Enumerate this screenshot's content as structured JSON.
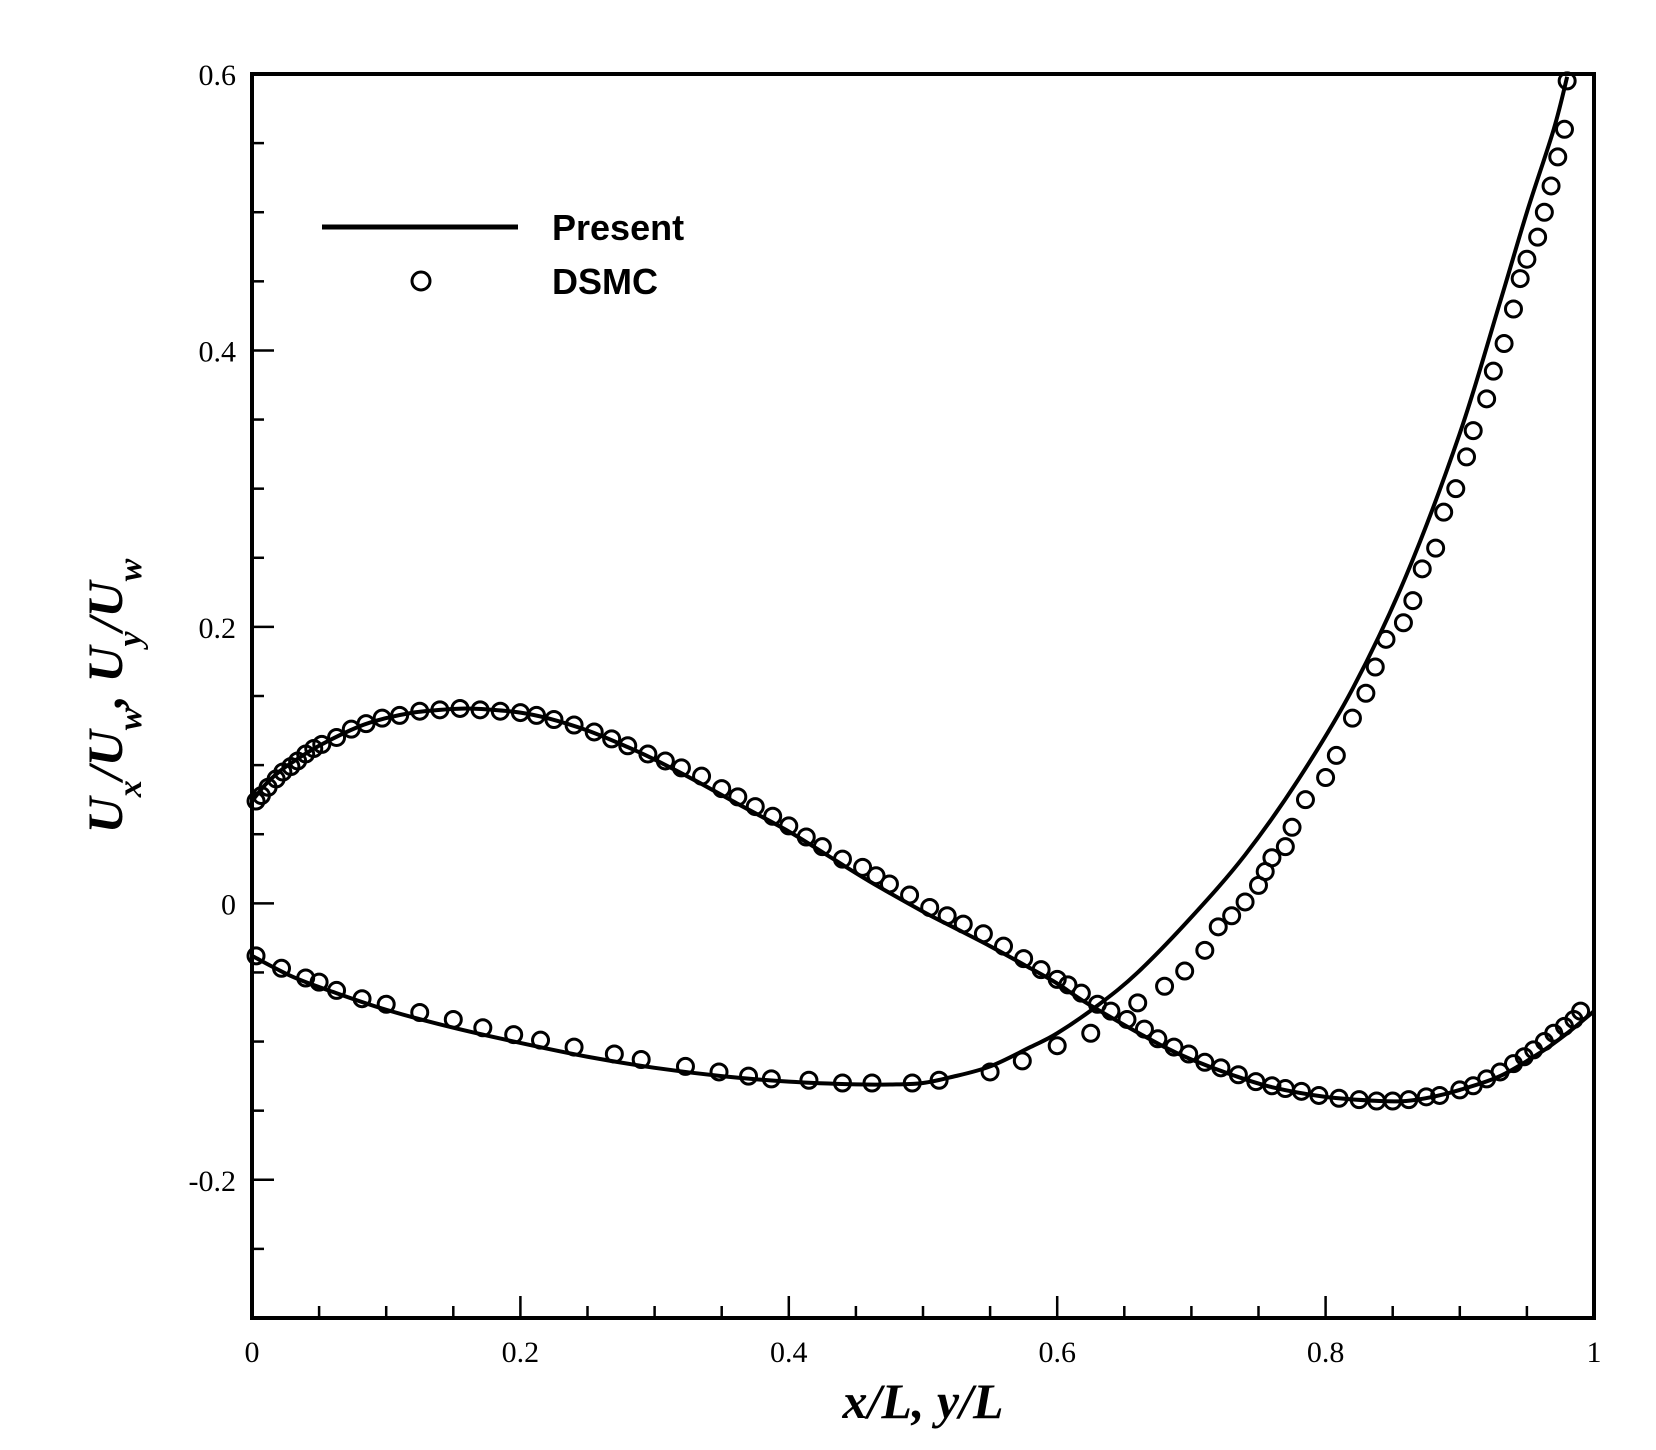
{
  "chart_data": {
    "type": "line",
    "xlabel": "x/L, y/L",
    "ylabel": "U_x/U_w, U_y/U_w",
    "ylabel_parts": [
      {
        "t": "U",
        "sub": ""
      },
      {
        "t": "x",
        "sub": "sub"
      },
      {
        "t": "/U",
        "sub": ""
      },
      {
        "t": "w",
        "sub": "sub"
      },
      {
        "t": ", U",
        "sub": ""
      },
      {
        "t": "y",
        "sub": "sub"
      },
      {
        "t": "/U",
        "sub": ""
      },
      {
        "t": "w",
        "sub": "sub"
      }
    ],
    "xlim": [
      0,
      1
    ],
    "ylim": [
      -0.3,
      0.6
    ],
    "xticks": [
      0,
      0.2,
      0.4,
      0.6,
      0.8,
      1
    ],
    "xtick_labels": [
      "0",
      "0.2",
      "0.4",
      "0.6",
      "0.8",
      "1"
    ],
    "yticks": [
      -0.2,
      0,
      0.2,
      0.4,
      0.6
    ],
    "ytick_labels": [
      "-0.2",
      "0",
      "0.2",
      "0.4",
      "0.6"
    ],
    "x_minor_step": 0.05,
    "y_minor_step": 0.05,
    "grid": false,
    "legend": {
      "position": "top-left",
      "entries": [
        {
          "label": "Present",
          "style": "solid-line"
        },
        {
          "label": "DSMC",
          "style": "open-circle"
        }
      ]
    },
    "series": [
      {
        "style": "solid-line",
        "x": [
          0.0,
          0.01,
          0.02,
          0.03,
          0.05,
          0.08,
          0.1,
          0.12,
          0.14,
          0.16,
          0.18,
          0.2,
          0.22,
          0.25,
          0.28,
          0.3,
          0.33,
          0.36,
          0.4,
          0.43,
          0.46,
          0.5,
          0.52,
          0.55,
          0.58,
          0.6,
          0.62,
          0.65,
          0.68,
          0.7,
          0.73,
          0.76,
          0.8,
          0.84,
          0.86,
          0.88,
          0.9,
          0.93,
          0.96,
          0.98,
          1.0
        ],
        "y": [
          0.074,
          0.086,
          0.095,
          0.102,
          0.114,
          0.128,
          0.134,
          0.138,
          0.14,
          0.141,
          0.14,
          0.138,
          0.134,
          0.125,
          0.113,
          0.104,
          0.089,
          0.073,
          0.052,
          0.034,
          0.016,
          -0.006,
          -0.016,
          -0.031,
          -0.047,
          -0.058,
          -0.071,
          -0.088,
          -0.104,
          -0.113,
          -0.124,
          -0.133,
          -0.14,
          -0.143,
          -0.143,
          -0.14,
          -0.135,
          -0.125,
          -0.108,
          -0.094,
          -0.078
        ]
      },
      {
        "style": "open-circle",
        "x": [
          0.003,
          0.007,
          0.012,
          0.018,
          0.023,
          0.029,
          0.034,
          0.04,
          0.046,
          0.052,
          0.063,
          0.074,
          0.085,
          0.097,
          0.11,
          0.125,
          0.14,
          0.155,
          0.17,
          0.185,
          0.2,
          0.212,
          0.225,
          0.24,
          0.255,
          0.268,
          0.28,
          0.295,
          0.308,
          0.32,
          0.335,
          0.35,
          0.362,
          0.375,
          0.388,
          0.4,
          0.413,
          0.425,
          0.44,
          0.455,
          0.465,
          0.475,
          0.49,
          0.505,
          0.518,
          0.53,
          0.545,
          0.56,
          0.575,
          0.588,
          0.6,
          0.608,
          0.618,
          0.63,
          0.64,
          0.652,
          0.665,
          0.675,
          0.687,
          0.698,
          0.71,
          0.722,
          0.735,
          0.748,
          0.76,
          0.77,
          0.782,
          0.795,
          0.81,
          0.825,
          0.838,
          0.85,
          0.862,
          0.875,
          0.885,
          0.9,
          0.91,
          0.92,
          0.93,
          0.94,
          0.948,
          0.955,
          0.963,
          0.97,
          0.978,
          0.985,
          0.99
        ],
        "y": [
          0.074,
          0.078,
          0.084,
          0.09,
          0.095,
          0.099,
          0.103,
          0.108,
          0.112,
          0.115,
          0.12,
          0.126,
          0.13,
          0.134,
          0.136,
          0.139,
          0.14,
          0.141,
          0.14,
          0.139,
          0.138,
          0.136,
          0.133,
          0.129,
          0.124,
          0.119,
          0.114,
          0.108,
          0.103,
          0.098,
          0.092,
          0.083,
          0.077,
          0.07,
          0.063,
          0.056,
          0.048,
          0.041,
          0.032,
          0.026,
          0.02,
          0.014,
          0.006,
          -0.003,
          -0.009,
          -0.015,
          -0.022,
          -0.031,
          -0.04,
          -0.048,
          -0.055,
          -0.059,
          -0.065,
          -0.073,
          -0.078,
          -0.084,
          -0.091,
          -0.098,
          -0.104,
          -0.109,
          -0.115,
          -0.119,
          -0.124,
          -0.129,
          -0.132,
          -0.134,
          -0.136,
          -0.139,
          -0.141,
          -0.142,
          -0.143,
          -0.143,
          -0.142,
          -0.14,
          -0.139,
          -0.135,
          -0.132,
          -0.127,
          -0.122,
          -0.116,
          -0.111,
          -0.106,
          -0.1,
          -0.094,
          -0.089,
          -0.084,
          -0.078
        ]
      },
      {
        "style": "solid-line",
        "x": [
          0.0,
          0.03,
          0.06,
          0.1,
          0.15,
          0.2,
          0.25,
          0.3,
          0.35,
          0.4,
          0.45,
          0.48,
          0.5,
          0.52,
          0.55,
          0.58,
          0.6,
          0.63,
          0.66,
          0.7,
          0.74,
          0.78,
          0.82,
          0.86,
          0.9,
          0.93,
          0.95,
          0.97,
          0.98
        ],
        "y": [
          -0.038,
          -0.053,
          -0.064,
          -0.077,
          -0.09,
          -0.101,
          -0.111,
          -0.119,
          -0.125,
          -0.129,
          -0.131,
          -0.131,
          -0.13,
          -0.126,
          -0.118,
          -0.104,
          -0.094,
          -0.074,
          -0.05,
          -0.01,
          0.035,
          0.09,
          0.155,
          0.237,
          0.34,
          0.435,
          0.5,
          0.56,
          0.598
        ]
      },
      {
        "style": "open-circle",
        "x": [
          0.003,
          0.022,
          0.04,
          0.05,
          0.063,
          0.082,
          0.1,
          0.125,
          0.15,
          0.172,
          0.195,
          0.215,
          0.24,
          0.27,
          0.29,
          0.323,
          0.348,
          0.37,
          0.387,
          0.415,
          0.44,
          0.462,
          0.492,
          0.512,
          0.55,
          0.574,
          0.6,
          0.625,
          0.66,
          0.68,
          0.695,
          0.71,
          0.72,
          0.73,
          0.74,
          0.75,
          0.755,
          0.76,
          0.77,
          0.775,
          0.785,
          0.8,
          0.808,
          0.82,
          0.83,
          0.837,
          0.845,
          0.858,
          0.865,
          0.872,
          0.882,
          0.888,
          0.897,
          0.905,
          0.91,
          0.92,
          0.925,
          0.933,
          0.94,
          0.945,
          0.95,
          0.958,
          0.963,
          0.968,
          0.973,
          0.978,
          0.98
        ],
        "y": [
          -0.038,
          -0.047,
          -0.054,
          -0.057,
          -0.063,
          -0.069,
          -0.073,
          -0.079,
          -0.084,
          -0.09,
          -0.095,
          -0.099,
          -0.104,
          -0.109,
          -0.113,
          -0.118,
          -0.122,
          -0.125,
          -0.127,
          -0.128,
          -0.13,
          -0.13,
          -0.13,
          -0.128,
          -0.122,
          -0.114,
          -0.103,
          -0.094,
          -0.072,
          -0.06,
          -0.049,
          -0.034,
          -0.017,
          -0.009,
          0.001,
          0.013,
          0.023,
          0.033,
          0.041,
          0.055,
          0.075,
          0.091,
          0.107,
          0.134,
          0.152,
          0.171,
          0.191,
          0.203,
          0.219,
          0.242,
          0.257,
          0.283,
          0.3,
          0.323,
          0.342,
          0.365,
          0.385,
          0.405,
          0.43,
          0.452,
          0.466,
          0.482,
          0.5,
          0.519,
          0.54,
          0.56,
          0.595
        ]
      }
    ]
  }
}
